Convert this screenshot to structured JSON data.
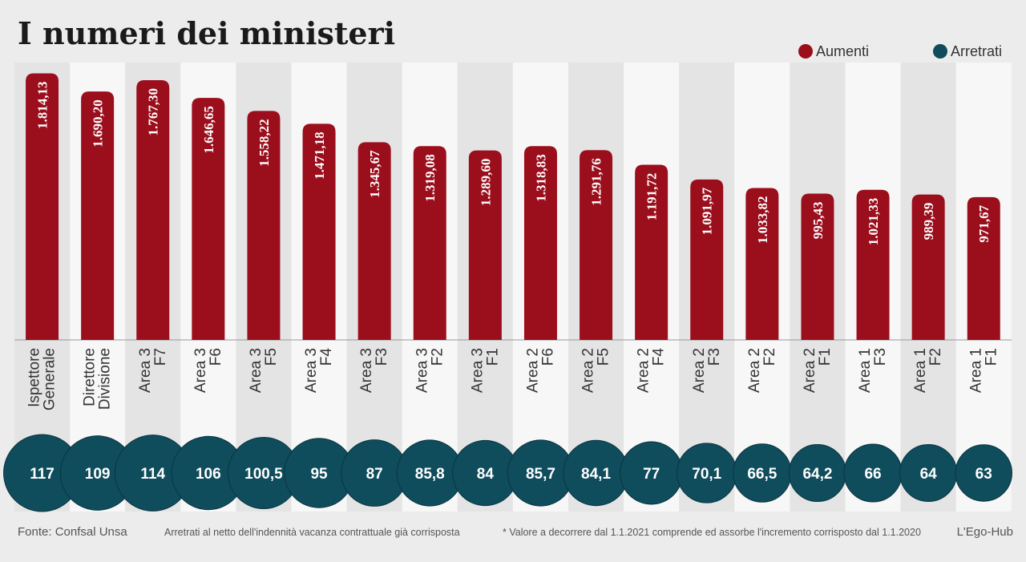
{
  "title": "I numeri dei ministeri",
  "legend": [
    {
      "label": "Aumenti",
      "color": "#9b0e1c"
    },
    {
      "label": "Arretrati",
      "color": "#0f4c5c"
    }
  ],
  "footer": {
    "source": "Fonte: Confsal Unsa",
    "note_arretrati": "Arretrati al netto dell'indennità vacanza contrattuale già corrisposta",
    "note_valore": "* Valore a decorrere dal 1.1.2021 comprende ed assorbe l'incremento corrisposto dal 1.1.2020",
    "credit": "L'Ego-Hub"
  },
  "colors": {
    "aumenti": "#9b0e1c",
    "arretrati": "#0f4c5c",
    "stripe_light": "#f7f7f7",
    "stripe_dark": "#e4e4e4"
  },
  "chart_data": {
    "type": "bar",
    "categories": [
      [
        "Ispettore",
        "Generale"
      ],
      [
        "Direttore",
        "Divisione"
      ],
      [
        "Area 3",
        "F7"
      ],
      [
        "Area 3",
        "F6"
      ],
      [
        "Area 3",
        "F5"
      ],
      [
        "Area 3",
        "F4"
      ],
      [
        "Area 3",
        "F3"
      ],
      [
        "Area 3",
        "F2"
      ],
      [
        "Area 3",
        "F1"
      ],
      [
        "Area 2",
        "F6"
      ],
      [
        "Area 2",
        "F5"
      ],
      [
        "Area 2",
        "F4"
      ],
      [
        "Area 2",
        "F3"
      ],
      [
        "Area 2",
        "F2"
      ],
      [
        "Area 2",
        "F1"
      ],
      [
        "Area 1",
        "F3"
      ],
      [
        "Area 1",
        "F2"
      ],
      [
        "Area 1",
        "F1"
      ]
    ],
    "series": [
      {
        "name": "Aumenti",
        "values": [
          1814.13,
          1690.2,
          1767.3,
          1646.65,
          1558.22,
          1471.18,
          1345.67,
          1319.08,
          1289.6,
          1318.83,
          1291.76,
          1191.72,
          1091.97,
          1033.82,
          995.43,
          1021.33,
          989.39,
          971.67
        ],
        "labels": [
          "1.814,13",
          "1.690,20",
          "1.767,30",
          "1.646,65",
          "1.558,22",
          "1.471,18",
          "1.345,67",
          "1.319,08",
          "1.289,60",
          "1.318,83",
          "1.291,76",
          "1.191,72",
          "1.091,97",
          "1.033,82",
          "995,43",
          "1.021,33",
          "989,39",
          "971,67"
        ]
      },
      {
        "name": "Arretrati",
        "values": [
          117,
          109,
          114,
          106,
          100.5,
          95,
          87,
          85.8,
          84,
          85.7,
          84.1,
          77,
          70.1,
          66.5,
          64.2,
          66,
          64,
          63
        ],
        "labels": [
          "117",
          "109",
          "114",
          "106",
          "100,5",
          "95",
          "87",
          "85,8",
          "84",
          "85,7",
          "84,1",
          "77",
          "70,1",
          "66,5",
          "64,2",
          "66",
          "64",
          "63"
        ]
      }
    ]
  }
}
